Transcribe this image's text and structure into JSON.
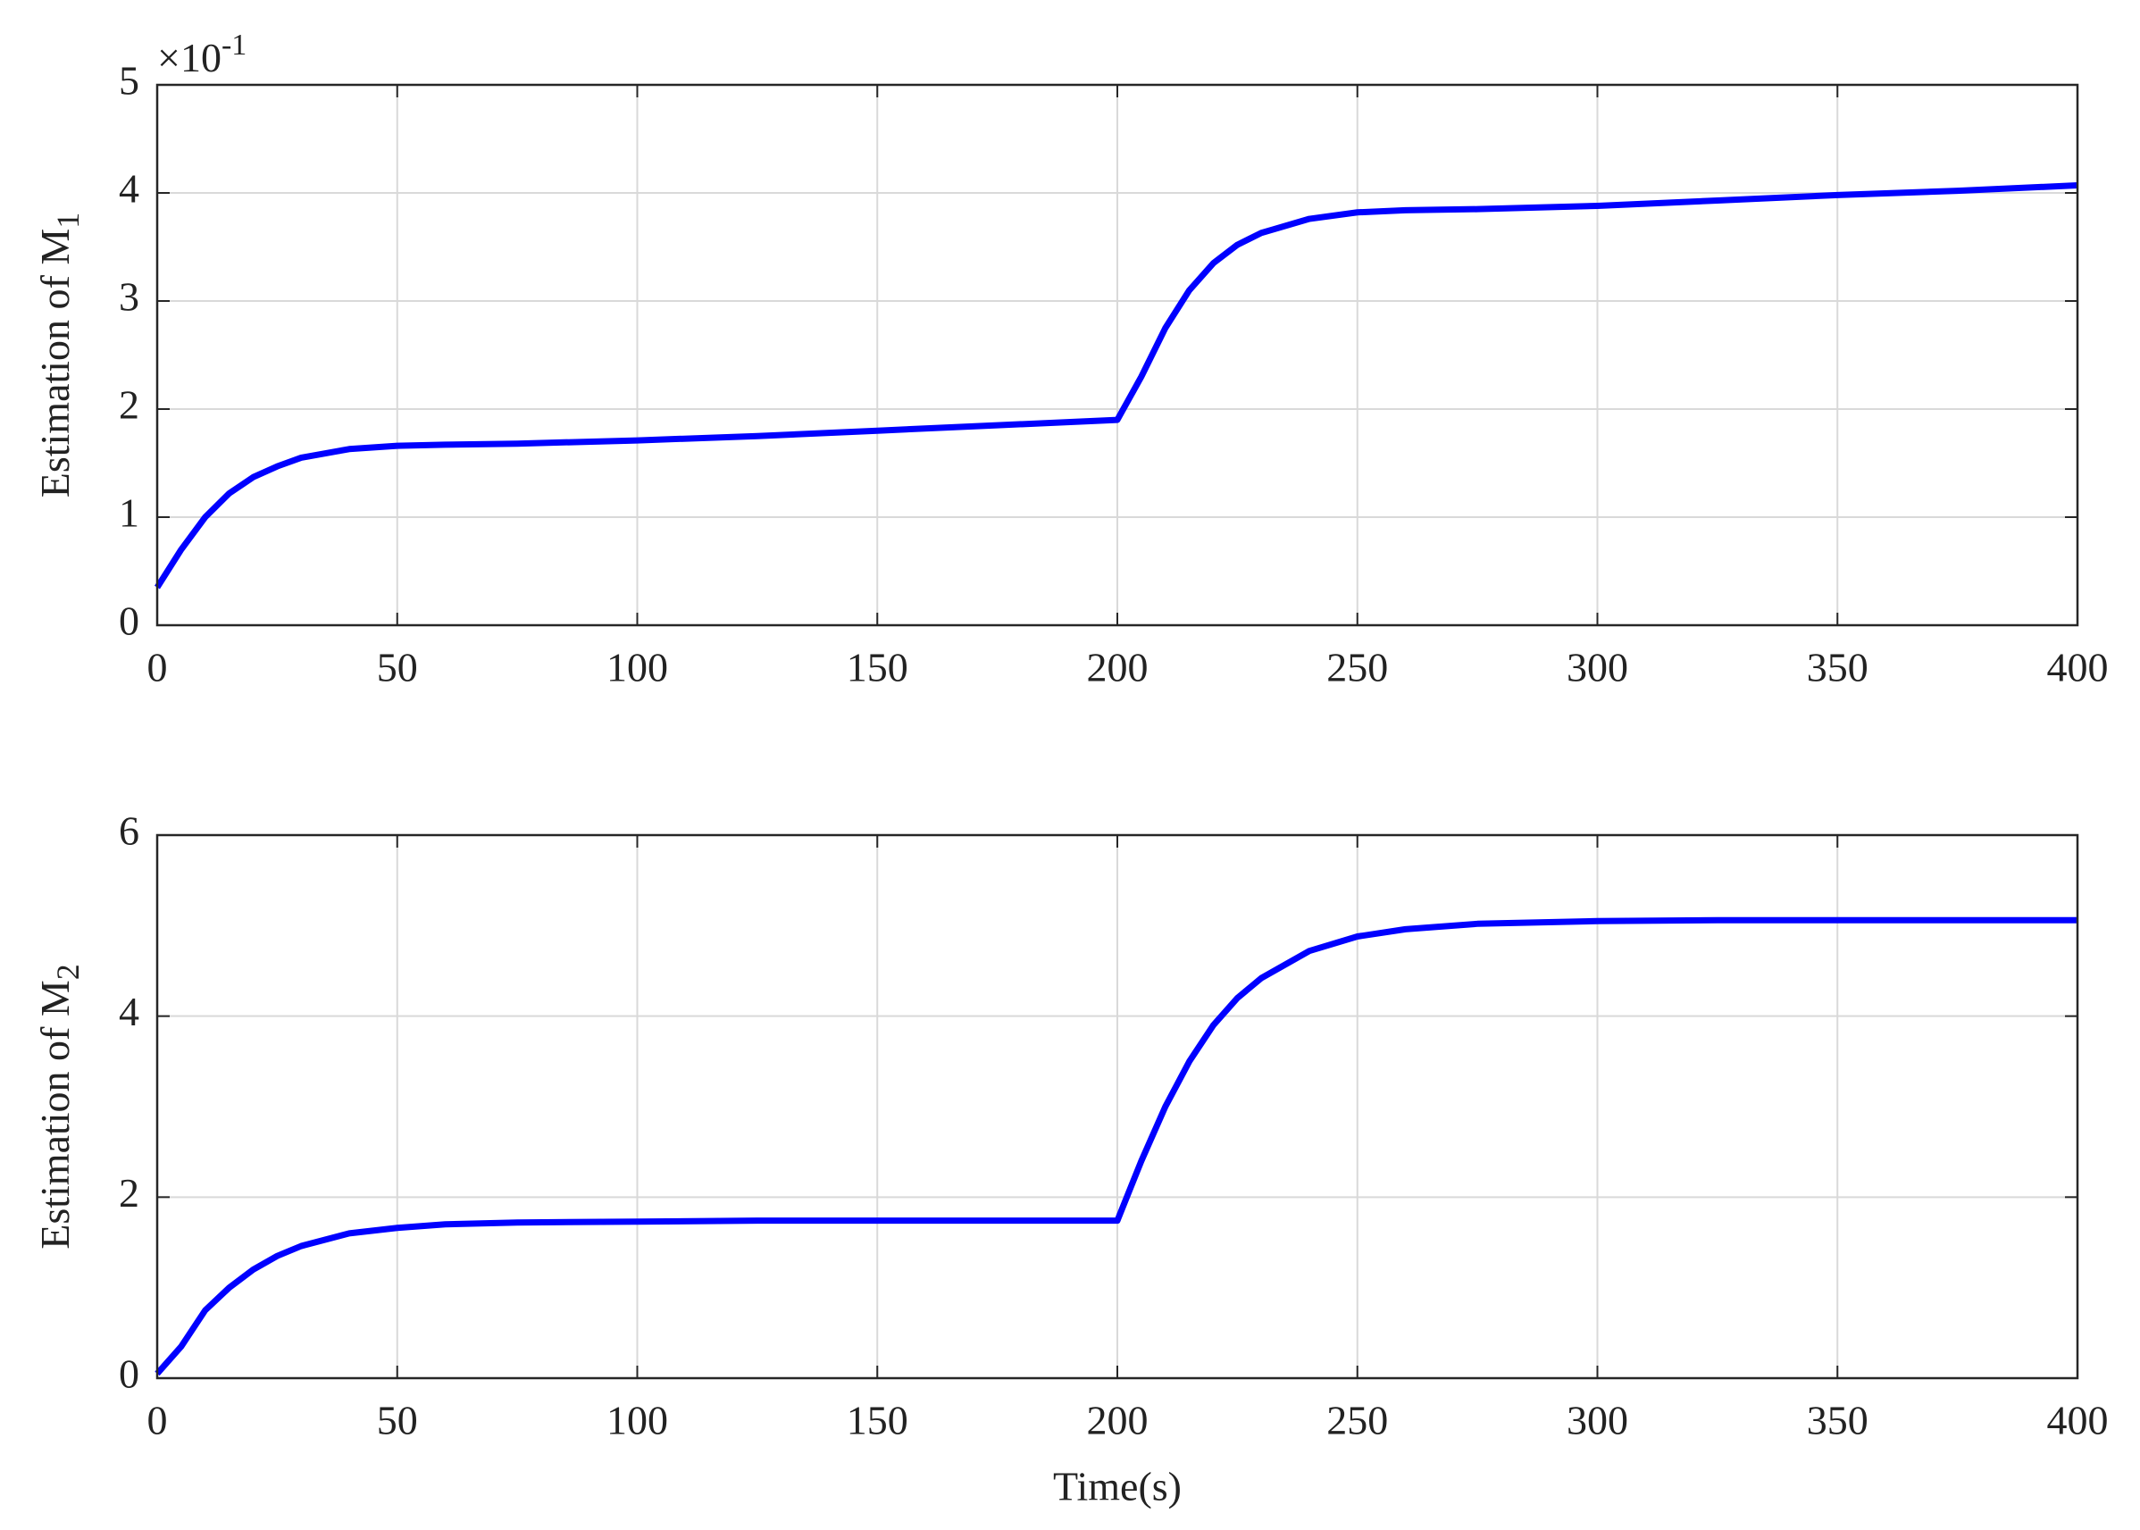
{
  "chart_data": [
    {
      "type": "line",
      "ylabel": "Estimation of M",
      "ylabel_sub": "1",
      "y_multiplier": "×10",
      "y_multiplier_exp": "-1",
      "x": [
        0,
        5,
        10,
        15,
        20,
        25,
        30,
        40,
        50,
        60,
        75,
        100,
        125,
        150,
        175,
        200,
        205,
        210,
        215,
        220,
        225,
        230,
        240,
        250,
        260,
        275,
        300,
        325,
        350,
        375,
        400
      ],
      "series": [
        {
          "color": "#0000ff",
          "values": [
            0.35,
            0.7,
            1.0,
            1.22,
            1.37,
            1.47,
            1.55,
            1.63,
            1.66,
            1.67,
            1.68,
            1.71,
            1.75,
            1.8,
            1.85,
            1.9,
            2.3,
            2.75,
            3.1,
            3.35,
            3.52,
            3.63,
            3.76,
            3.82,
            3.84,
            3.85,
            3.88,
            3.93,
            3.98,
            4.02,
            4.07
          ]
        }
      ],
      "xlim": [
        0,
        400
      ],
      "xticks": [
        0,
        50,
        100,
        150,
        200,
        250,
        300,
        350,
        400
      ],
      "ylim": [
        0,
        5
      ],
      "yticks": [
        0,
        1,
        2,
        3,
        4,
        5
      ],
      "grid": true
    },
    {
      "type": "line",
      "ylabel": "Estimation of M",
      "ylabel_sub": "2",
      "xlabel": "Time(s)",
      "x": [
        0,
        5,
        10,
        15,
        20,
        25,
        30,
        40,
        50,
        60,
        75,
        100,
        125,
        150,
        175,
        200,
        205,
        210,
        215,
        220,
        225,
        230,
        240,
        250,
        260,
        275,
        300,
        325,
        350,
        375,
        400
      ],
      "series": [
        {
          "color": "#0000ff",
          "values": [
            0.05,
            0.35,
            0.75,
            1.0,
            1.2,
            1.35,
            1.46,
            1.6,
            1.66,
            1.7,
            1.72,
            1.73,
            1.74,
            1.74,
            1.74,
            1.74,
            2.4,
            3.0,
            3.5,
            3.9,
            4.2,
            4.42,
            4.72,
            4.88,
            4.96,
            5.02,
            5.05,
            5.06,
            5.06,
            5.06,
            5.06
          ]
        }
      ],
      "xlim": [
        0,
        400
      ],
      "xticks": [
        0,
        50,
        100,
        150,
        200,
        250,
        300,
        350,
        400
      ],
      "ylim": [
        0,
        6
      ],
      "yticks": [
        0,
        2,
        4,
        6
      ],
      "grid": true
    }
  ]
}
